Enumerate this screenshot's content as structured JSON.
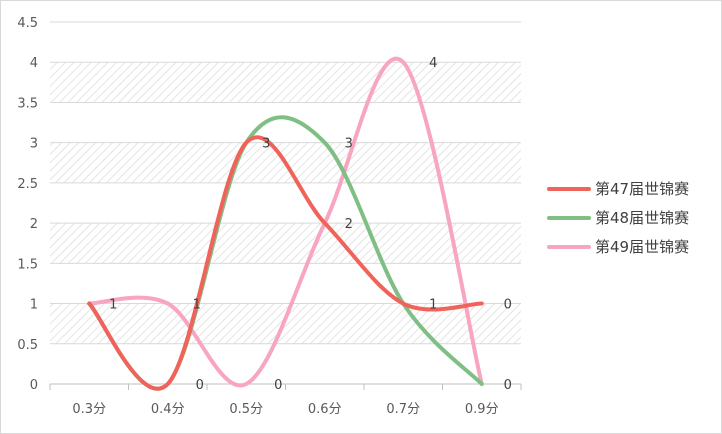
{
  "chart_data": {
    "type": "line",
    "smooth": true,
    "categories": [
      "0.3分",
      "0.4分",
      "0.5分",
      "0.6分",
      "0.7分",
      "0.9分"
    ],
    "series": [
      {
        "name": "第47届世锦赛",
        "values": [
          1,
          0,
          3,
          2,
          1,
          1
        ],
        "color": "#f0635a"
      },
      {
        "name": "第48届世锦赛",
        "values": [
          1,
          0,
          3,
          3,
          1,
          0
        ],
        "color": "#7fbf84"
      },
      {
        "name": "第49届世锦赛",
        "values": [
          1,
          1,
          0,
          2,
          4,
          0
        ],
        "color": "#f7a5c0"
      }
    ],
    "data_labels": [
      "1",
      "0",
      "0",
      "3",
      "3",
      "2",
      "1",
      "4",
      "1",
      "0"
    ],
    "ylim": [
      0,
      4.5
    ],
    "yticks": [
      "0",
      "0.5",
      "1",
      "1.5",
      "2",
      "2.5",
      "3",
      "3.5",
      "4",
      "4.5"
    ],
    "grid": "horizontal, hatched bands",
    "legend_position": "right"
  }
}
